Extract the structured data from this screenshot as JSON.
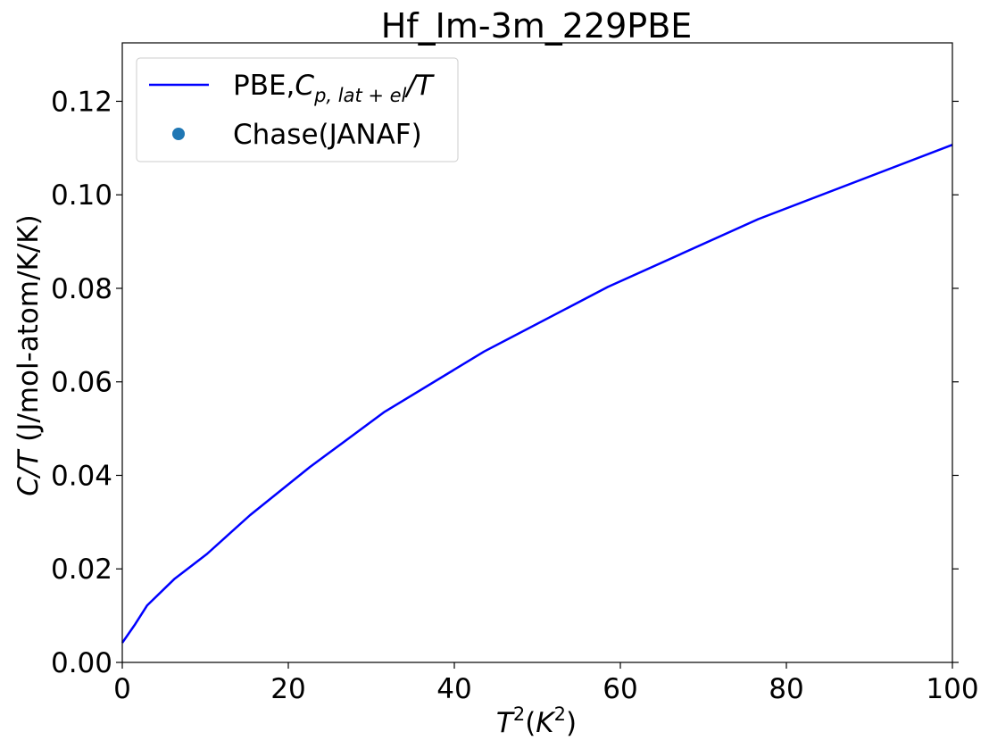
{
  "chart_data": {
    "type": "line",
    "title": "Hf_Im-3m_229PBE",
    "xlabel": {
      "base": "T",
      "sup1": "2",
      "open": "(",
      "unit": "K",
      "sup2": "2",
      "close": ")"
    },
    "ylabel": {
      "italic": "C/T",
      "rest": " (J/mol-atom/K/K)"
    },
    "xlim": [
      0,
      100
    ],
    "ylim": [
      0,
      0.1325
    ],
    "x_ticks": [
      "0",
      "20",
      "40",
      "60",
      "80",
      "100"
    ],
    "y_ticks": [
      "0.00",
      "0.02",
      "0.04",
      "0.06",
      "0.08",
      "0.10",
      "0.12"
    ],
    "grid": false,
    "legend_position": "top-left",
    "series": [
      {
        "name": "PBE,C_{p,lat+el}/T",
        "legend": {
          "prefix": "PBE,",
          "var": "C",
          "sub": "p, lat + el",
          "suffix": "/T"
        },
        "color": "#0000ff",
        "style": "line",
        "x": [
          0,
          1.56,
          3.0,
          6.25,
          10.2,
          15.4,
          22.6,
          31.6,
          43.6,
          58.5,
          76.6,
          100
        ],
        "y": [
          0.0042,
          0.0082,
          0.0122,
          0.0178,
          0.0232,
          0.0315,
          0.0418,
          0.0536,
          0.0665,
          0.0803,
          0.0948,
          0.1107
        ]
      },
      {
        "name": "Chase(JANAF)",
        "legend": {
          "text": "Chase(JANAF)"
        },
        "color": "#1f77b4",
        "style": "marker",
        "x": [],
        "y": []
      }
    ]
  }
}
